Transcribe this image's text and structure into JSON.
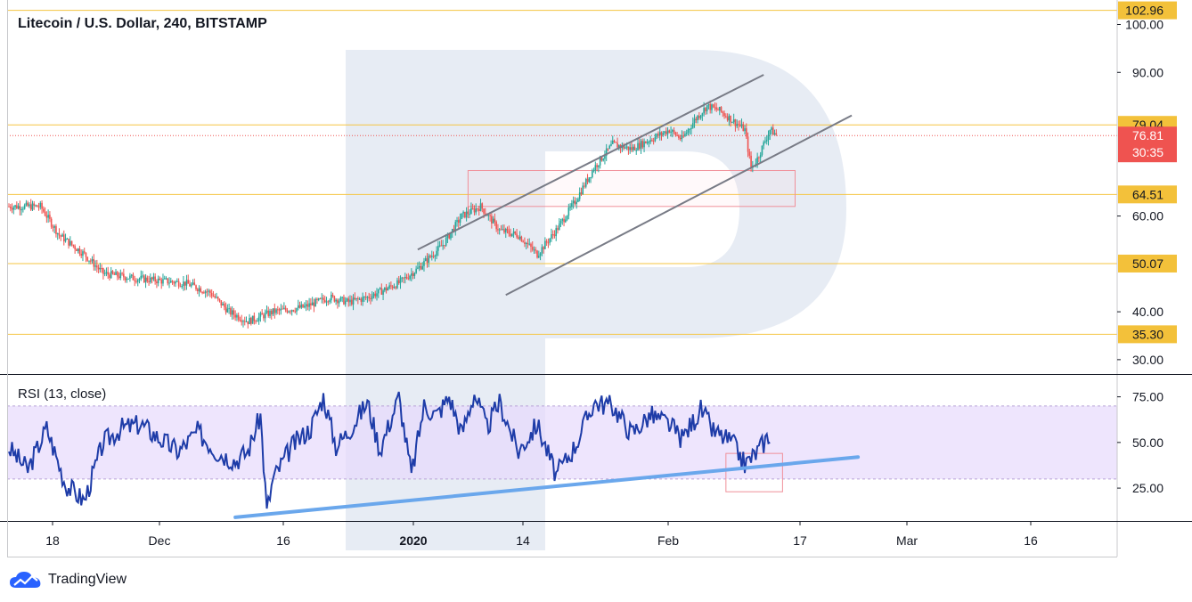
{
  "chart_title": "Litecoin / U.S. Dollar, 240, BITSTAMP",
  "rsi_title": "RSI (13, close)",
  "brand": "TradingView",
  "colors": {
    "bull": "#26a69a",
    "bear": "#ef5350",
    "level_line": "#f5c542",
    "level_label_bg": "#f3c13a",
    "price_label_bg": "#ef5350",
    "channel": "#787b86",
    "rsi_line": "#1e3ca8",
    "rsi_band": "#e7dafc",
    "trendline": "#6aa7ec",
    "box": "#f0909a",
    "watermark": "#dfe6f0",
    "axis": "#131722"
  },
  "chart_data": [
    {
      "type": "candlestick",
      "title": "Litecoin / U.S. Dollar, 240, BITSTAMP",
      "ylim": [
        27,
        104
      ],
      "y_ticks": [
        "30.00",
        "40.00",
        "60.00",
        "90.00",
        "100.00"
      ],
      "x_ticks": [
        "18",
        "Dec",
        "16",
        "2020",
        "14",
        "Feb",
        "17",
        "Mar",
        "16"
      ],
      "waypoints_price": [
        [
          0,
          62
        ],
        [
          5,
          62
        ],
        [
          8,
          56
        ],
        [
          12,
          52
        ],
        [
          15,
          48
        ],
        [
          20,
          47
        ],
        [
          28,
          46
        ],
        [
          32,
          44
        ],
        [
          35,
          40
        ],
        [
          38,
          38
        ],
        [
          42,
          40
        ],
        [
          47,
          41
        ],
        [
          51,
          43
        ],
        [
          54,
          42
        ],
        [
          57,
          43
        ],
        [
          62,
          46
        ],
        [
          65,
          49
        ],
        [
          69,
          54
        ],
        [
          72,
          60
        ],
        [
          75,
          62
        ],
        [
          78,
          57
        ],
        [
          81,
          56
        ],
        [
          84,
          52
        ],
        [
          87,
          57
        ],
        [
          90,
          63
        ],
        [
          93,
          70
        ],
        [
          96,
          75
        ],
        [
          99,
          74
        ],
        [
          102,
          76
        ],
        [
          105,
          78
        ],
        [
          107,
          76
        ],
        [
          109,
          80
        ],
        [
          111,
          83
        ],
        [
          113,
          82
        ],
        [
          115,
          80
        ],
        [
          117,
          78
        ],
        [
          118,
          70
        ],
        [
          119,
          72
        ],
        [
          121,
          78
        ],
        [
          122,
          77
        ]
      ],
      "horizontal_levels": [
        {
          "value": 102.96,
          "label": "102.96"
        },
        {
          "value": 79.04,
          "label": "79.04"
        },
        {
          "value": 64.51,
          "label": "64.51"
        },
        {
          "value": 50.07,
          "label": "50.07"
        },
        {
          "value": 35.3,
          "label": "35.30"
        }
      ],
      "current_price": {
        "value": 76.81,
        "label": "76.81",
        "countdown": "30:35"
      },
      "channel_lines": [
        {
          "from": {
            "bar": 65,
            "price": 53.0
          },
          "to": {
            "bar": 120,
            "price": 89.5
          }
        },
        {
          "from": {
            "bar": 79,
            "price": 43.5
          },
          "to": {
            "bar": 134,
            "price": 81.0
          }
        }
      ],
      "zone_box": {
        "bar_start": 73,
        "bar_end": 125,
        "price_high": 69.5,
        "price_low": 62.0
      }
    },
    {
      "type": "line",
      "title": "RSI (13, close)",
      "ylim": [
        7,
        87
      ],
      "y_ticks": [
        "25.00",
        "50.00",
        "75.00"
      ],
      "band": [
        30,
        70
      ],
      "waypoints_rsi": [
        [
          0,
          47
        ],
        [
          3,
          35
        ],
        [
          6,
          58
        ],
        [
          9,
          27
        ],
        [
          12,
          18
        ],
        [
          15,
          50
        ],
        [
          18,
          58
        ],
        [
          21,
          60
        ],
        [
          24,
          52
        ],
        [
          27,
          45
        ],
        [
          30,
          56
        ],
        [
          33,
          45
        ],
        [
          36,
          40
        ],
        [
          38,
          45
        ],
        [
          40,
          65
        ],
        [
          41,
          12
        ],
        [
          42,
          30
        ],
        [
          45,
          48
        ],
        [
          48,
          58
        ],
        [
          50,
          75
        ],
        [
          52,
          48
        ],
        [
          54,
          56
        ],
        [
          57,
          72
        ],
        [
          59,
          46
        ],
        [
          62,
          75
        ],
        [
          64,
          32
        ],
        [
          66,
          70
        ],
        [
          68,
          65
        ],
        [
          70,
          75
        ],
        [
          72,
          55
        ],
        [
          74,
          77
        ],
        [
          76,
          58
        ],
        [
          78,
          72
        ],
        [
          81,
          45
        ],
        [
          84,
          60
        ],
        [
          87,
          32
        ],
        [
          90,
          48
        ],
        [
          93,
          72
        ],
        [
          96,
          70
        ],
        [
          99,
          55
        ],
        [
          102,
          65
        ],
        [
          105,
          60
        ],
        [
          107,
          52
        ],
        [
          110,
          68
        ],
        [
          112,
          56
        ],
        [
          115,
          50
        ],
        [
          117,
          38
        ],
        [
          119,
          45
        ],
        [
          121,
          55
        ]
      ],
      "trendline": {
        "from": {
          "bar": 36,
          "rsi": 9
        },
        "to": {
          "bar": 135,
          "rsi": 42
        }
      },
      "zone_box": {
        "bar_start": 114,
        "bar_end": 123,
        "rsi_high": 44,
        "rsi_low": 23
      }
    }
  ]
}
